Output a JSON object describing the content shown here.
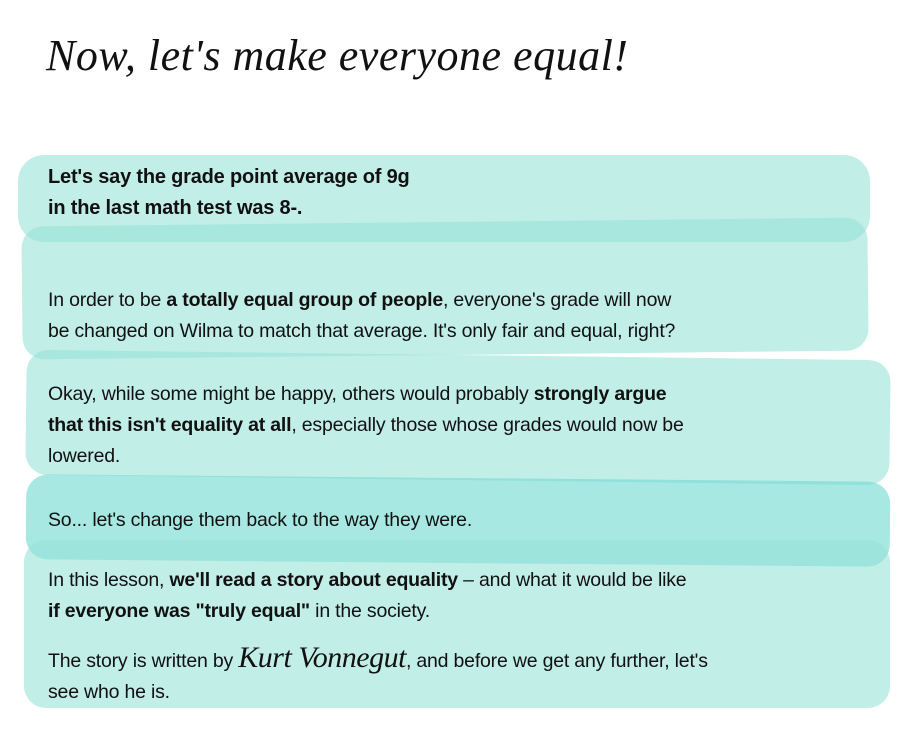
{
  "title": "Now, let's make everyone equal!",
  "intro": {
    "line1": "Let's say the grade point average of 9g",
    "line2": "in the last math test was 8-."
  },
  "p1": {
    "a": "In order to be ",
    "b": "a totally equal group of people",
    "c": ", everyone's grade will now",
    "d": "be changed on Wilma to match that average. It's only fair and equal, right?"
  },
  "p2": {
    "a": "Okay, while some might be happy, others would probably ",
    "b": "strongly argue",
    "c": "that this isn't equality at all",
    "d": ", especially those whose grades would now be",
    "e": "lowered."
  },
  "p3": {
    "a": "So... let's change them back to the way they were."
  },
  "p4": {
    "a": "In this lesson, ",
    "b": "we'll read a story about equality",
    "c": " – and what it would be like",
    "d": "if everyone was \"truly equal\"",
    "e": " in the society."
  },
  "p5": {
    "a": "The story is written by ",
    "author": "Kurt Vonnegut",
    "c": ", and before we get any further, let's",
    "d": "see who he is."
  },
  "colors": {
    "highlight": "#96e2d8",
    "highlight_dark": "#6fd8ce"
  }
}
